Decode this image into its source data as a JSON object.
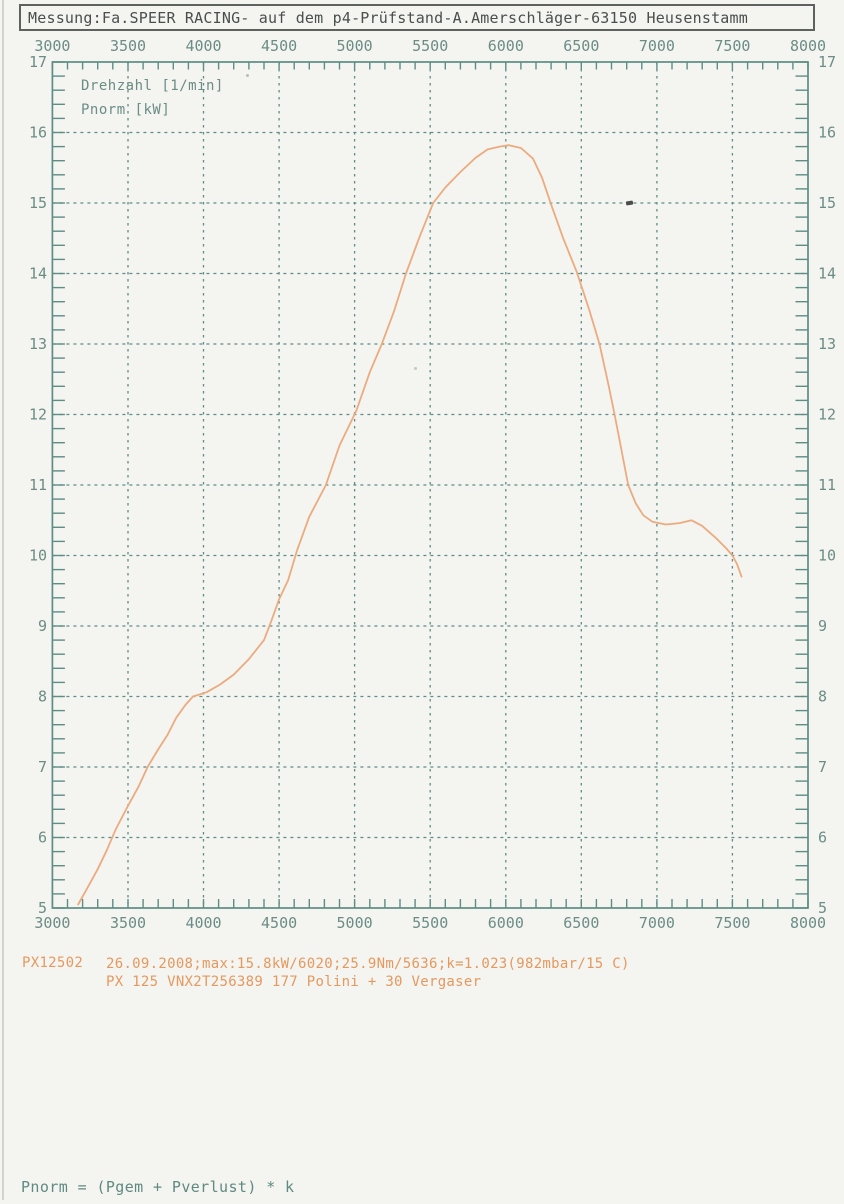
{
  "title_bar": {
    "text": "Messung:Fa.SPEER RACING- auf dem p4-Prüfstand-A.Amerschläger-63150 Heusenstamm"
  },
  "chart_data": {
    "type": "line",
    "title": "",
    "xlabel": "Drehzahl [1/min]",
    "ylabel": "Pnorm [kW]",
    "xlim": [
      3000,
      8000
    ],
    "ylim": [
      5,
      17
    ],
    "x_ticks": [
      3000,
      3500,
      4000,
      4500,
      5000,
      5500,
      6000,
      6500,
      7000,
      7500,
      8000
    ],
    "y_ticks": [
      5,
      6,
      7,
      8,
      9,
      10,
      11,
      12,
      13,
      14,
      15,
      16,
      17
    ],
    "x_minor_step": 100,
    "y_minor_step": 0.2,
    "grid": "dashed",
    "legend_position": "top-left-inside",
    "tick_label_sides": "top, bottom, left, right",
    "series": [
      {
        "name": "Pnorm",
        "units": "kW",
        "peak": {
          "value_kw": 15.8,
          "rpm": 6020
        },
        "points": [
          [
            3170,
            5.05
          ],
          [
            3230,
            5.28
          ],
          [
            3300,
            5.55
          ],
          [
            3360,
            5.82
          ],
          [
            3420,
            6.12
          ],
          [
            3500,
            6.45
          ],
          [
            3570,
            6.72
          ],
          [
            3630,
            7.0
          ],
          [
            3700,
            7.25
          ],
          [
            3760,
            7.45
          ],
          [
            3820,
            7.7
          ],
          [
            3880,
            7.88
          ],
          [
            3930,
            8.0
          ],
          [
            4020,
            8.06
          ],
          [
            4110,
            8.17
          ],
          [
            4200,
            8.31
          ],
          [
            4300,
            8.53
          ],
          [
            4400,
            8.8
          ],
          [
            4450,
            9.08
          ],
          [
            4500,
            9.38
          ],
          [
            4560,
            9.65
          ],
          [
            4620,
            10.08
          ],
          [
            4700,
            10.55
          ],
          [
            4810,
            11.0
          ],
          [
            4900,
            11.56
          ],
          [
            5010,
            12.05
          ],
          [
            5100,
            12.6
          ],
          [
            5180,
            13.0
          ],
          [
            5260,
            13.46
          ],
          [
            5340,
            14.0
          ],
          [
            5430,
            14.52
          ],
          [
            5520,
            15.0
          ],
          [
            5600,
            15.22
          ],
          [
            5700,
            15.44
          ],
          [
            5800,
            15.64
          ],
          [
            5880,
            15.76
          ],
          [
            5960,
            15.8
          ],
          [
            6020,
            15.82
          ],
          [
            6100,
            15.78
          ],
          [
            6180,
            15.63
          ],
          [
            6240,
            15.36
          ],
          [
            6300,
            14.98
          ],
          [
            6380,
            14.5
          ],
          [
            6470,
            14.02
          ],
          [
            6550,
            13.5
          ],
          [
            6620,
            13.0
          ],
          [
            6680,
            12.42
          ],
          [
            6720,
            12.0
          ],
          [
            6770,
            11.45
          ],
          [
            6810,
            11.0
          ],
          [
            6860,
            10.74
          ],
          [
            6910,
            10.57
          ],
          [
            6970,
            10.48
          ],
          [
            7060,
            10.44
          ],
          [
            7150,
            10.46
          ],
          [
            7230,
            10.5
          ],
          [
            7300,
            10.42
          ],
          [
            7390,
            10.25
          ],
          [
            7460,
            10.1
          ],
          [
            7500,
            10.0
          ],
          [
            7530,
            9.88
          ],
          [
            7560,
            9.7
          ]
        ]
      }
    ]
  },
  "annotations": {
    "run_id": "PX12502",
    "line1": "26.09.2008;max:15.8kW/6020;25.9Nm/5636;k=1.023(982mbar/15 C)",
    "line2": "PX 125 VNX2T256389 177 Polini + 30 Vergaser",
    "formula": "Pnorm = (Pgem + Pverlust) * k"
  },
  "colors": {
    "curve": "#ecab7e",
    "grid": "#5d8d85",
    "axis_text": "#6b8d86",
    "title_text": "#4a4f4d",
    "orange_text": "#e5995f",
    "paper": "#f4f4f1"
  }
}
